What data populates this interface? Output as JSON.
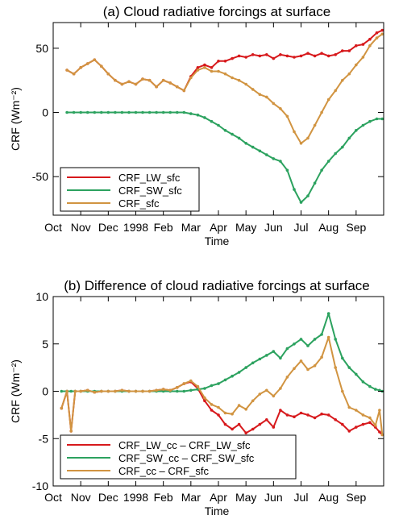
{
  "figure": {
    "panels": [
      {
        "title": "(a) Cloud radiative forcings at surface",
        "ylabel": "CRF (Wm⁻²)",
        "xlabel": "Time",
        "x_tick_labels": [
          "Oct",
          "Nov",
          "Dec",
          "1998",
          "Feb",
          "Mar",
          "Apr",
          "May",
          "Jun",
          "Jul",
          "Aug",
          "Sep"
        ],
        "y_tick_labels": [
          "-50",
          "0",
          "50"
        ]
      },
      {
        "title": "(b) Difference of cloud radiative forcings at surface",
        "ylabel": "CRF (Wm⁻²)",
        "xlabel": "Time",
        "x_tick_labels": [
          "Oct",
          "Nov",
          "Dec",
          "1998",
          "Feb",
          "Mar",
          "Apr",
          "May",
          "Jun",
          "Jul",
          "Aug",
          "Sep"
        ],
        "y_tick_labels": [
          "-10",
          "-5",
          "0",
          "5",
          "10"
        ]
      }
    ]
  },
  "chart_data": [
    {
      "type": "line",
      "title": "(a) Cloud radiative forcings at surface",
      "xlabel": "Time",
      "ylabel": "CRF (Wm⁻²)",
      "x_unit": "months since Oct 1 1997",
      "xlim": [
        0,
        12
      ],
      "ylim": [
        -80,
        70
      ],
      "yticks": [
        -50,
        0,
        50
      ],
      "legend_position": "lower-left",
      "x": [
        0.5,
        0.75,
        1.0,
        1.25,
        1.5,
        1.75,
        2.0,
        2.25,
        2.5,
        2.75,
        3.0,
        3.25,
        3.5,
        3.75,
        4.0,
        4.25,
        4.5,
        4.75,
        5.0,
        5.25,
        5.5,
        5.75,
        6.0,
        6.25,
        6.5,
        6.75,
        7.0,
        7.25,
        7.5,
        7.75,
        8.0,
        8.25,
        8.5,
        8.75,
        9.0,
        9.25,
        9.5,
        9.75,
        10.0,
        10.25,
        10.5,
        10.75,
        11.0,
        11.25,
        11.5,
        11.75,
        11.95
      ],
      "series": [
        {
          "name": "CRF_LW_sfc",
          "color": "#d7191c",
          "values": [
            33,
            30,
            35,
            38,
            41,
            36,
            30,
            25,
            22,
            24,
            22,
            26,
            25,
            20,
            25,
            23,
            20,
            17,
            28,
            35,
            37,
            35,
            40,
            40,
            42,
            44,
            43,
            45,
            44,
            45,
            42,
            45,
            44,
            43,
            44,
            46,
            44,
            46,
            44,
            45,
            48,
            48,
            52,
            53,
            57,
            62,
            64
          ]
        },
        {
          "name": "CRF_SW_sfc",
          "color": "#2ca25f",
          "values": [
            0,
            0,
            0,
            0,
            0,
            0,
            0,
            0,
            0,
            0,
            0,
            0,
            0,
            0,
            0,
            0,
            0,
            0,
            -1,
            -2,
            -4,
            -7,
            -10,
            -14,
            -17,
            -20,
            -24,
            -27,
            -30,
            -33,
            -36,
            -38,
            -45,
            -60,
            -70,
            -65,
            -55,
            -45,
            -38,
            -32,
            -27,
            -20,
            -14,
            -10,
            -7,
            -5,
            -5
          ]
        },
        {
          "name": "CRF_sfc",
          "color": "#d19441",
          "values": [
            33,
            30,
            35,
            38,
            41,
            36,
            30,
            25,
            22,
            24,
            22,
            26,
            25,
            20,
            25,
            23,
            20,
            17,
            27,
            33,
            35,
            32,
            32,
            30,
            27,
            25,
            22,
            18,
            14,
            12,
            7,
            3,
            -3,
            -15,
            -24,
            -20,
            -10,
            0,
            10,
            17,
            25,
            30,
            37,
            43,
            52,
            58,
            61
          ]
        }
      ]
    },
    {
      "type": "line",
      "title": "(b) Difference of cloud radiative forcings at surface",
      "xlabel": "Time",
      "ylabel": "CRF (Wm⁻²)",
      "x_unit": "months since Oct 1 1997",
      "xlim": [
        0,
        12
      ],
      "ylim": [
        -10,
        10
      ],
      "yticks": [
        -10,
        -5,
        0,
        5,
        10
      ],
      "legend_position": "lower-left",
      "x": [
        0.3,
        0.5,
        0.65,
        0.8,
        1.0,
        1.25,
        1.5,
        1.75,
        2.0,
        2.25,
        2.5,
        2.75,
        3.0,
        3.25,
        3.5,
        3.75,
        4.0,
        4.25,
        4.5,
        4.75,
        5.0,
        5.25,
        5.5,
        5.75,
        6.0,
        6.25,
        6.5,
        6.75,
        7.0,
        7.25,
        7.5,
        7.75,
        8.0,
        8.25,
        8.5,
        8.75,
        9.0,
        9.25,
        9.5,
        9.75,
        10.0,
        10.25,
        10.5,
        10.75,
        11.0,
        11.25,
        11.5,
        11.7,
        11.85,
        11.95
      ],
      "series": [
        {
          "name": "CRF_LW_cc – CRF_LW_sfc",
          "color": "#d7191c",
          "values": [
            -1.8,
            0,
            -4.2,
            0,
            0,
            0.1,
            -0.1,
            0,
            0,
            0,
            0.1,
            0,
            0,
            0,
            0,
            0.1,
            0.2,
            0.1,
            0.4,
            0.8,
            1,
            0.3,
            -1,
            -2,
            -2.5,
            -3.5,
            -4,
            -3.5,
            -4.4,
            -4,
            -3.5,
            -3,
            -3.8,
            -2,
            -2.5,
            -2.7,
            -2.3,
            -2.5,
            -2.8,
            -2.4,
            -2.5,
            -3,
            -3.5,
            -4.2,
            -3.8,
            -3.5,
            -3.3,
            -3.8,
            -4.3,
            -4.6
          ]
        },
        {
          "name": "CRF_SW_cc – CRF_SW_sfc",
          "color": "#2ca25f",
          "values": [
            0,
            0,
            0,
            0,
            0,
            0,
            0,
            0,
            0,
            0,
            0,
            0,
            0,
            0,
            0,
            0,
            0,
            0,
            0,
            0,
            0.1,
            0.2,
            0.3,
            0.6,
            0.8,
            1.2,
            1.6,
            2,
            2.5,
            3,
            3.4,
            3.8,
            4.2,
            3.5,
            4.5,
            5,
            5.5,
            4.8,
            5.5,
            6,
            8.2,
            5.5,
            3.5,
            2.5,
            1.8,
            1,
            0.5,
            0.2,
            0.1,
            0
          ]
        },
        {
          "name": "CRF_cc – CRF_sfc",
          "color": "#d19441",
          "values": [
            -1.8,
            0,
            -4.2,
            0,
            0,
            0.1,
            -0.1,
            0,
            0,
            0,
            0.1,
            0,
            0,
            0,
            0,
            0.1,
            0.2,
            0.1,
            0.4,
            0.8,
            1.1,
            0.5,
            -0.7,
            -1.4,
            -1.7,
            -2.3,
            -2.4,
            -1.5,
            -1.9,
            -1,
            -0.3,
            0.1,
            -0.5,
            0.3,
            1.5,
            2.4,
            3.2,
            2.3,
            2.7,
            3.6,
            5.7,
            2.5,
            0,
            -1.7,
            -2,
            -2.5,
            -2.8,
            -3.6,
            -2,
            -4.6
          ]
        }
      ]
    }
  ]
}
